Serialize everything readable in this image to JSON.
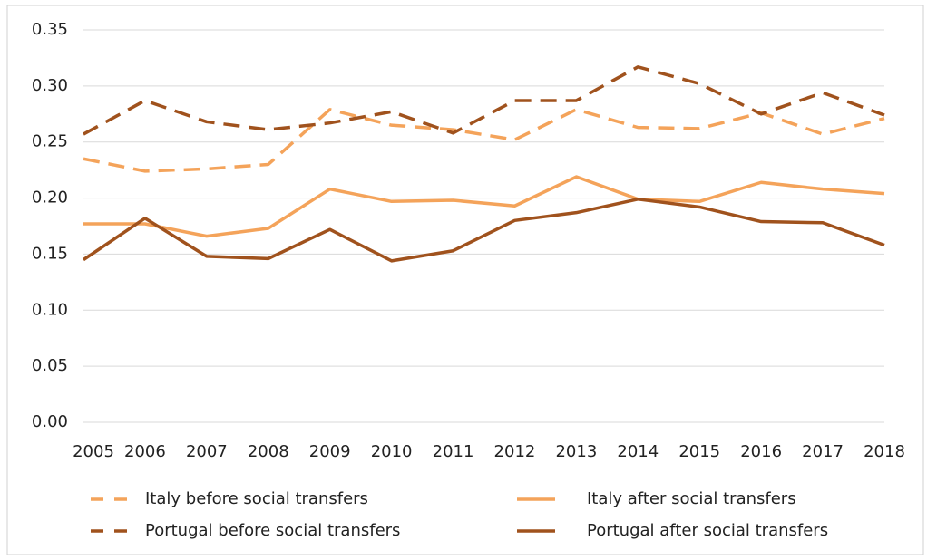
{
  "chart_data": {
    "type": "line",
    "categories": [
      "2005",
      "2006",
      "2007",
      "2008",
      "2009",
      "2010",
      "2011",
      "2012",
      "2013",
      "2014",
      "2015",
      "2016",
      "2017",
      "2018"
    ],
    "series": [
      {
        "name": "Italy before social transfers",
        "color": "#f4a35a",
        "line_style": "dashed",
        "values": [
          0.235,
          0.224,
          0.226,
          0.23,
          0.279,
          0.265,
          0.261,
          0.252,
          0.279,
          0.263,
          0.262,
          0.276,
          0.257,
          0.271
        ]
      },
      {
        "name": "Italy after social transfers",
        "color": "#f4a35a",
        "line_style": "solid",
        "values": [
          0.177,
          0.177,
          0.166,
          0.173,
          0.208,
          0.197,
          0.198,
          0.193,
          0.219,
          0.199,
          0.197,
          0.214,
          0.208,
          0.204
        ]
      },
      {
        "name": "Portugal before social transfers",
        "color": "#a0521d",
        "line_style": "dashed",
        "values": [
          0.257,
          0.287,
          0.268,
          0.261,
          0.267,
          0.277,
          0.258,
          0.287,
          0.287,
          0.317,
          0.302,
          0.275,
          0.294,
          0.274
        ]
      },
      {
        "name": "Portugal after social transfers",
        "color": "#a0521d",
        "line_style": "solid",
        "values": [
          0.145,
          0.182,
          0.148,
          0.146,
          0.172,
          0.144,
          0.153,
          0.18,
          0.187,
          0.199,
          0.192,
          0.179,
          0.178,
          0.158
        ]
      }
    ],
    "ylim": [
      0,
      0.35
    ],
    "yticks": [
      {
        "value": 0,
        "label": "0.00"
      },
      {
        "value": 0.05,
        "label": "0.05"
      },
      {
        "value": 0.1,
        "label": "0.10"
      },
      {
        "value": 0.15,
        "label": "0.15"
      },
      {
        "value": 0.2,
        "label": "0.20"
      },
      {
        "value": 0.25,
        "label": "0.25"
      },
      {
        "value": 0.3,
        "label": "0.30"
      },
      {
        "value": 0.35,
        "label": "0.35"
      }
    ],
    "grid": true,
    "legend": "bottom"
  }
}
